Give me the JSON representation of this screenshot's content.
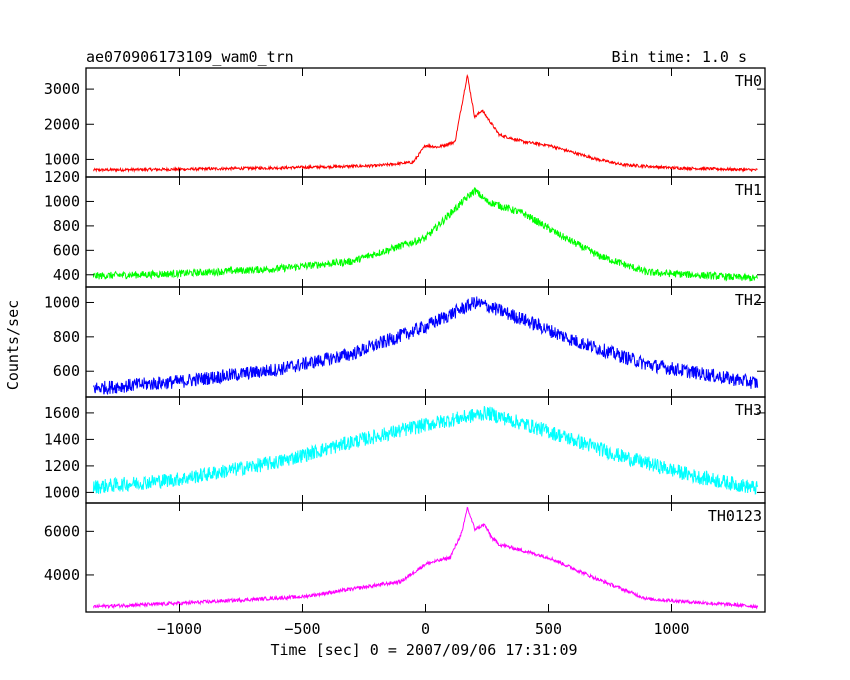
{
  "header": {
    "title": "ae070906173109_wam0_trn",
    "bin_time": "Bin time: 1.0 s"
  },
  "chart_data": {
    "type": "line",
    "xlabel": "Time [sec] 0 = 2007/09/06 17:31:09",
    "ylabel": "Counts/sec",
    "xlim": [
      -1380,
      1380
    ],
    "x_ticks": [
      -1000,
      -500,
      0,
      500,
      1000
    ],
    "x_tick_labels": [
      "−1000",
      "−500",
      "0",
      "500",
      "1000"
    ],
    "grid": false,
    "panels": [
      {
        "name": "TH0",
        "color": "#ff0000",
        "ylim": [
          500,
          3600
        ],
        "y_ticks": [
          1000,
          2000,
          3000
        ],
        "y_tick_labels": [
          "1000",
          "2000",
          "3000"
        ],
        "series": {
          "x": [
            -1350,
            -1000,
            -600,
            -200,
            -50,
            0,
            50,
            120,
            170,
            200,
            230,
            260,
            300,
            400,
            500,
            600,
            700,
            800,
            1000,
            1350
          ],
          "y": [
            700,
            720,
            760,
            820,
            920,
            1400,
            1350,
            1500,
            3400,
            2200,
            2400,
            2100,
            1700,
            1500,
            1400,
            1200,
            1000,
            850,
            760,
            700
          ],
          "noise": 40
        }
      },
      {
        "name": "TH1",
        "color": "#00ff00",
        "ylim": [
          300,
          1200
        ],
        "y_ticks": [
          400,
          600,
          800,
          1000,
          1200
        ],
        "y_tick_labels": [
          "400",
          "600",
          "800",
          "1000",
          "1200"
        ],
        "series": {
          "x": [
            -1350,
            -1000,
            -600,
            -300,
            0,
            100,
            200,
            250,
            400,
            550,
            700,
            900,
            1350
          ],
          "y": [
            390,
            410,
            450,
            510,
            700,
            900,
            1090,
            1000,
            900,
            720,
            560,
            420,
            370
          ],
          "noise": 30
        }
      },
      {
        "name": "TH2",
        "color": "#0000ff",
        "ylim": [
          450,
          1090
        ],
        "y_ticks": [
          600,
          800,
          1000
        ],
        "y_tick_labels": [
          "600",
          "800",
          "1000"
        ],
        "series": {
          "x": [
            -1350,
            -1000,
            -600,
            -300,
            0,
            200,
            250,
            400,
            600,
            900,
            1350
          ],
          "y": [
            500,
            540,
            610,
            700,
            860,
            1000,
            980,
            900,
            780,
            640,
            530
          ],
          "noise": 40
        }
      },
      {
        "name": "TH3",
        "color": "#00ffff",
        "ylim": [
          920,
          1720
        ],
        "y_ticks": [
          1000,
          1200,
          1400,
          1600
        ],
        "y_tick_labels": [
          "1000",
          "1200",
          "1400",
          "1600"
        ],
        "series": {
          "x": [
            -1350,
            -1000,
            -600,
            -300,
            0,
            250,
            500,
            800,
            1100,
            1350
          ],
          "y": [
            1040,
            1100,
            1230,
            1380,
            1510,
            1600,
            1460,
            1270,
            1120,
            1030
          ],
          "noise": 55
        }
      },
      {
        "name": "TH0123",
        "color": "#ff00ff",
        "ylim": [
          2300,
          7300
        ],
        "y_ticks": [
          4000,
          6000
        ],
        "y_tick_labels": [
          "4000",
          "6000"
        ],
        "series": {
          "x": [
            -1350,
            -1000,
            -500,
            -100,
            0,
            100,
            150,
            170,
            200,
            240,
            270,
            300,
            500,
            700,
            900,
            1350
          ],
          "y": [
            2550,
            2700,
            3000,
            3700,
            4500,
            4800,
            6000,
            7100,
            6100,
            6300,
            5700,
            5400,
            4800,
            3800,
            2900,
            2550
          ],
          "noise": 80
        }
      }
    ]
  }
}
